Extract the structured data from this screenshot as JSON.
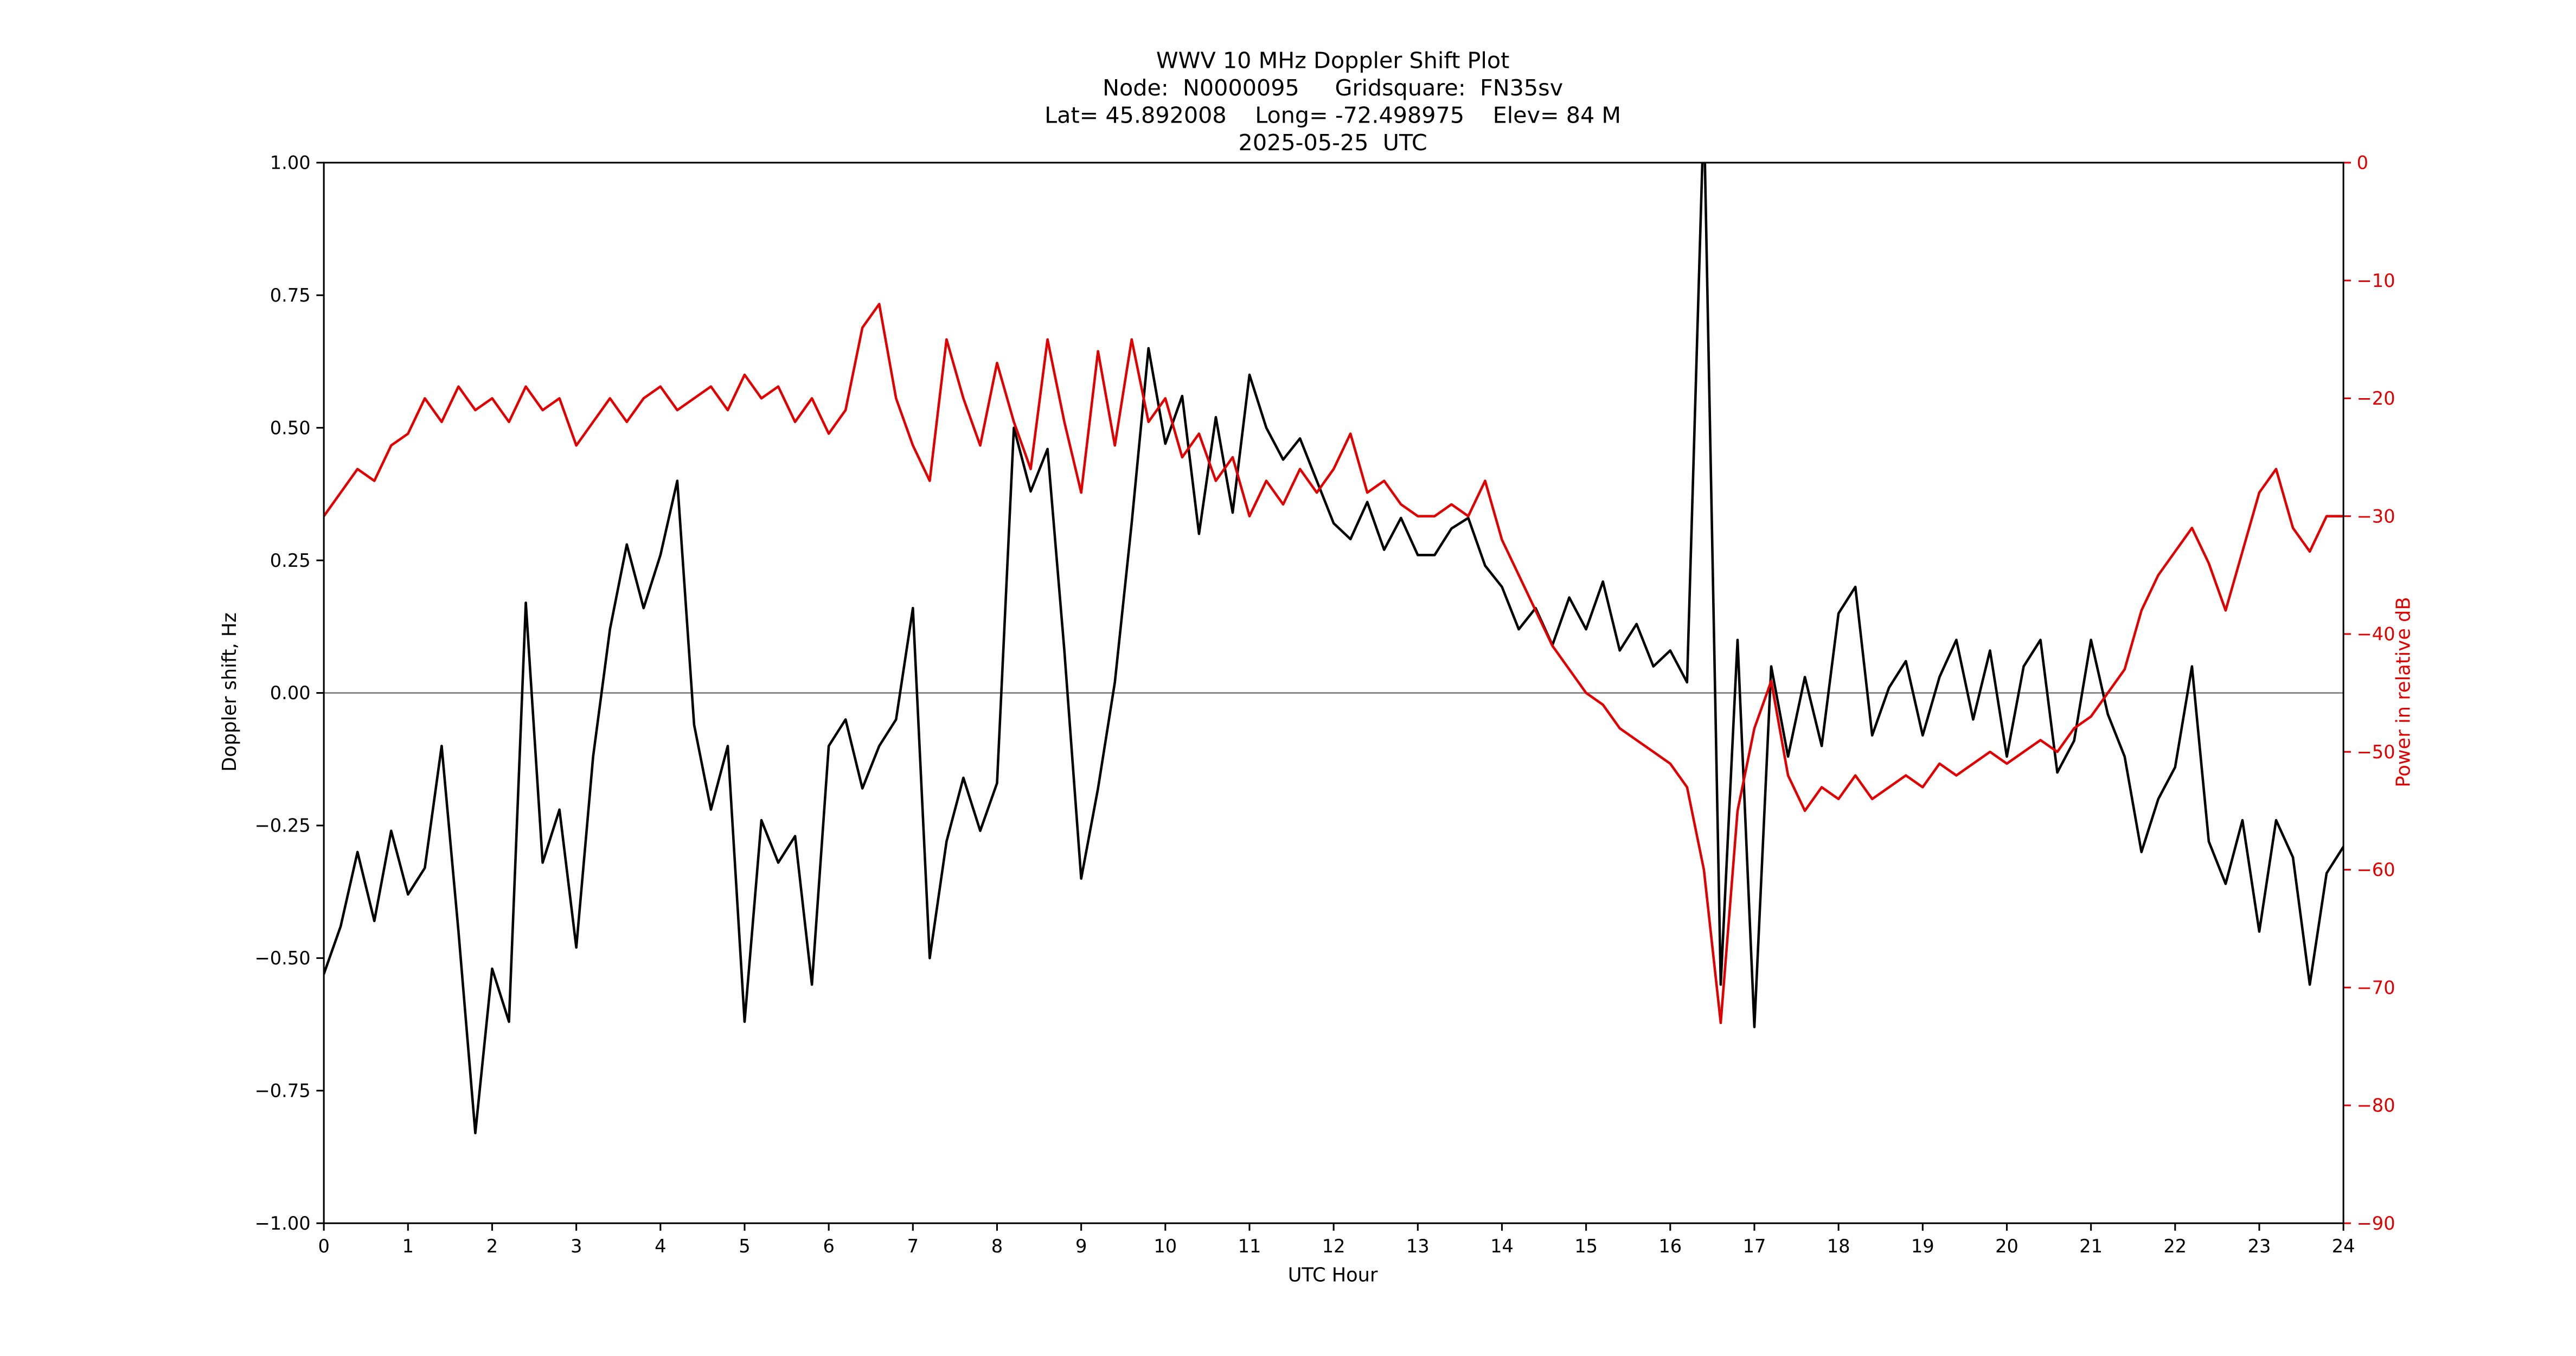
{
  "figure": {
    "background": "#ffffff"
  },
  "chart_data": {
    "type": "line",
    "title": "WWV 10 MHz Doppler Shift Plot",
    "title_lines": [
      "WWV 10 MHz Doppler Shift Plot",
      "Node:  N0000095     Gridsquare:  FN35sv",
      "Lat= 45.892008    Long= -72.498975    Elev= 84 M",
      "2025-05-25  UTC"
    ],
    "xlabel": "UTC Hour",
    "ylabel_left": "Doppler shift, Hz",
    "ylabel_right": "Power in relative dB",
    "x_range": [
      0,
      24
    ],
    "y_left_range": [
      -1.0,
      1.0
    ],
    "y_right_range": [
      -90,
      0
    ],
    "grid": false,
    "legend": "none",
    "zero_reference_line_left": 0.0,
    "x_tick_values": [
      0,
      1,
      2,
      3,
      4,
      5,
      6,
      7,
      8,
      9,
      10,
      11,
      12,
      13,
      14,
      15,
      16,
      17,
      18,
      19,
      20,
      21,
      22,
      23,
      24
    ],
    "x_tick_labels": [
      "0",
      "1",
      "2",
      "3",
      "4",
      "5",
      "6",
      "7",
      "8",
      "9",
      "10",
      "11",
      "12",
      "13",
      "14",
      "15",
      "16",
      "17",
      "18",
      "19",
      "20",
      "21",
      "22",
      "23",
      "24"
    ],
    "y_left_tick_values": [
      1.0,
      0.75,
      0.5,
      0.25,
      0.0,
      -0.25,
      -0.5,
      -0.75,
      -1.0
    ],
    "y_left_tick_labels": [
      "1.00",
      "0.75",
      "0.50",
      "0.25",
      "0.00",
      "−0.25",
      "−0.50",
      "−0.75",
      "−1.00"
    ],
    "y_right_tick_values": [
      0,
      -10,
      -20,
      -30,
      -40,
      -50,
      -60,
      -70,
      -80,
      -90
    ],
    "y_right_tick_labels": [
      "0",
      "−10",
      "−20",
      "−30",
      "−40",
      "−50",
      "−60",
      "−70",
      "−80",
      "−90"
    ],
    "colors": {
      "doppler": "#000000",
      "power": "#e00000",
      "zero_line": "#808080",
      "frame": "#000000",
      "background": "#ffffff"
    },
    "x_step": 0.2,
    "series": [
      {
        "name": "Doppler shift (Hz)",
        "axis": "left",
        "color": "#000000",
        "values": [
          -0.53,
          -0.44,
          -0.3,
          -0.43,
          -0.26,
          -0.38,
          -0.33,
          -0.1,
          -0.45,
          -0.83,
          -0.52,
          -0.62,
          0.17,
          -0.32,
          -0.22,
          -0.48,
          -0.12,
          0.12,
          0.28,
          0.16,
          0.26,
          0.4,
          -0.06,
          -0.22,
          -0.1,
          -0.62,
          -0.24,
          -0.32,
          -0.27,
          -0.55,
          -0.1,
          -0.05,
          -0.18,
          -0.1,
          -0.05,
          0.16,
          -0.5,
          -0.28,
          -0.16,
          -0.26,
          -0.17,
          0.5,
          0.38,
          0.46,
          0.08,
          -0.35,
          -0.18,
          0.02,
          0.32,
          0.65,
          0.47,
          0.56,
          0.3,
          0.52,
          0.34,
          0.6,
          0.5,
          0.44,
          0.48,
          0.4,
          0.32,
          0.29,
          0.36,
          0.27,
          0.33,
          0.26,
          0.26,
          0.31,
          0.33,
          0.24,
          0.2,
          0.12,
          0.16,
          0.09,
          0.18,
          0.12,
          0.21,
          0.08,
          0.13,
          0.05,
          0.08,
          0.02,
          1.1,
          -0.55,
          0.1,
          -0.63,
          0.05,
          -0.12,
          0.03,
          -0.1,
          0.15,
          0.2,
          -0.08,
          0.01,
          0.06,
          -0.08,
          0.03,
          0.1,
          -0.05,
          0.08,
          -0.12,
          0.05,
          0.1,
          -0.15,
          -0.09,
          0.1,
          -0.04,
          -0.12,
          -0.3,
          -0.2,
          -0.14,
          0.05,
          -0.28,
          -0.36,
          -0.24,
          -0.45,
          -0.24,
          -0.31,
          -0.55,
          -0.34,
          -0.29
        ]
      },
      {
        "name": "Power in relative dB",
        "axis": "right",
        "color": "#e00000",
        "values": [
          -30,
          -28,
          -26,
          -27,
          -24,
          -23,
          -20,
          -22,
          -19,
          -21,
          -20,
          -22,
          -19,
          -21,
          -20,
          -24,
          -22,
          -20,
          -22,
          -20,
          -19,
          -21,
          -20,
          -19,
          -21,
          -18,
          -20,
          -19,
          -22,
          -20,
          -23,
          -21,
          -14,
          -12,
          -20,
          -24,
          -27,
          -15,
          -20,
          -24,
          -17,
          -22,
          -26,
          -15,
          -22,
          -28,
          -16,
          -24,
          -15,
          -22,
          -20,
          -25,
          -23,
          -27,
          -25,
          -30,
          -27,
          -29,
          -26,
          -28,
          -26,
          -23,
          -28,
          -27,
          -29,
          -30,
          -30,
          -29,
          -30,
          -27,
          -32,
          -35,
          -38,
          -41,
          -43,
          -45,
          -46,
          -48,
          -49,
          -50,
          -51,
          -53,
          -60,
          -73,
          -55,
          -48,
          -44,
          -52,
          -55,
          -53,
          -54,
          -52,
          -54,
          -53,
          -52,
          -53,
          -51,
          -52,
          -51,
          -50,
          -51,
          -50,
          -49,
          -50,
          -48,
          -47,
          -45,
          -43,
          -38,
          -35,
          -33,
          -31,
          -34,
          -38,
          -33,
          -28,
          -26,
          -31,
          -33,
          -30,
          -30
        ]
      }
    ]
  }
}
